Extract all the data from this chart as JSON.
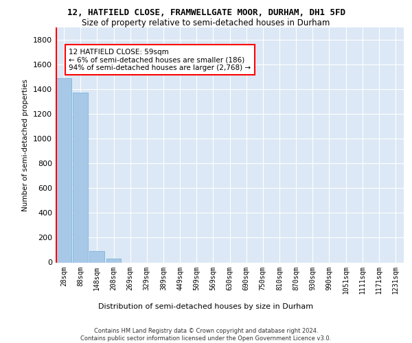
{
  "title_line1": "12, HATFIELD CLOSE, FRAMWELLGATE MOOR, DURHAM, DH1 5FD",
  "title_line2": "Size of property relative to semi-detached houses in Durham",
  "xlabel": "Distribution of semi-detached houses by size in Durham",
  "ylabel": "Number of semi-detached properties",
  "footnote": "Contains HM Land Registry data © Crown copyright and database right 2024.\nContains public sector information licensed under the Open Government Licence v3.0.",
  "bin_labels": [
    "28sqm",
    "88sqm",
    "148sqm",
    "208sqm",
    "269sqm",
    "329sqm",
    "389sqm",
    "449sqm",
    "509sqm",
    "569sqm",
    "630sqm",
    "690sqm",
    "750sqm",
    "810sqm",
    "870sqm",
    "930sqm",
    "990sqm",
    "1051sqm",
    "1111sqm",
    "1171sqm",
    "1231sqm"
  ],
  "bar_values": [
    1487,
    1375,
    93,
    29,
    0,
    0,
    0,
    0,
    0,
    0,
    0,
    0,
    0,
    0,
    0,
    0,
    0,
    0,
    0,
    0,
    0
  ],
  "bar_color": "#a8c8e8",
  "bar_edge_color": "#6baed6",
  "annotation_text": "12 HATFIELD CLOSE: 59sqm\n← 6% of semi-detached houses are smaller (186)\n94% of semi-detached houses are larger (2,768) →",
  "annotation_box_color": "white",
  "annotation_box_edge_color": "red",
  "ylim": [
    0,
    1900
  ],
  "background_color": "#dce8f5",
  "grid_color": "white",
  "yticks": [
    0,
    200,
    400,
    600,
    800,
    1000,
    1200,
    1400,
    1600,
    1800
  ]
}
